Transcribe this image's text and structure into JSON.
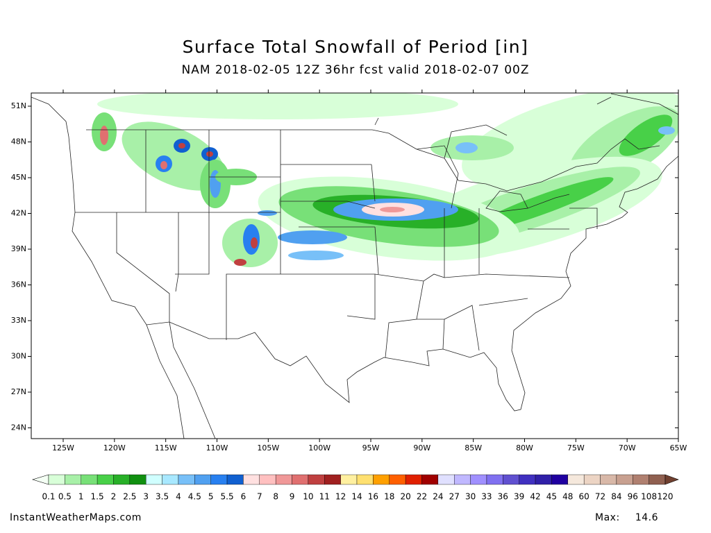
{
  "title": "Surface Total Snowfall of Period [in]",
  "subtitle": "NAM 2018-02-05 12Z 36hr fcst valid 2018-02-07 00Z",
  "lat_labels": [
    "51N",
    "48N",
    "45N",
    "42N",
    "39N",
    "36N",
    "33N",
    "30N",
    "27N",
    "24N"
  ],
  "lon_labels": [
    "125W",
    "120W",
    "115W",
    "110W",
    "105W",
    "100W",
    "95W",
    "90W",
    "85W",
    "80W",
    "75W",
    "70W",
    "65W"
  ],
  "colorbar": {
    "values": [
      0.1,
      0.5,
      1,
      1.5,
      2,
      2.5,
      3,
      3.5,
      4,
      4.5,
      5,
      5.5,
      6,
      7,
      8,
      9,
      10,
      11,
      12,
      14,
      16,
      18,
      20,
      22,
      24,
      27,
      30,
      33,
      36,
      39,
      42,
      45,
      48,
      60,
      72,
      84,
      96,
      108,
      120
    ],
    "colors": [
      "#d8ffd8",
      "#a8f0a8",
      "#78e078",
      "#48d048",
      "#28b028",
      "#109010",
      "#d0ffff",
      "#a8e8ff",
      "#78c0f8",
      "#50a0f0",
      "#2880f0",
      "#1060d0",
      "#ffe0e0",
      "#ffc0c0",
      "#f09898",
      "#e07070",
      "#c04040",
      "#a02020",
      "#fff0a0",
      "#ffe070",
      "#ffa000",
      "#ff6000",
      "#e02000",
      "#a00000",
      "#e0e0ff",
      "#c0b8ff",
      "#a090ff",
      "#8070f0",
      "#6050d0",
      "#4030c0",
      "#3020a8",
      "#2000a0",
      "#f5e8dc",
      "#ecd4c4",
      "#d8b8a8",
      "#c8a090",
      "#b08070",
      "#906050"
    ],
    "under_color": "#f4fff4",
    "over_color": "#704030"
  },
  "footer": "InstantWeatherMaps.com",
  "max_label": "Max:",
  "max_value": 14.6
}
